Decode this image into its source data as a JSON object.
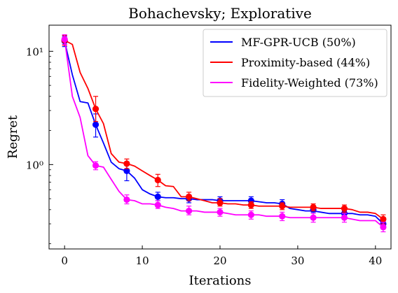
{
  "chart_data": {
    "type": "line",
    "title": "Bohachevsky; Explorative",
    "xlabel": "Iterations",
    "ylabel": "Regret",
    "xlim": [
      -2,
      42
    ],
    "ylim": [
      0.18,
      17
    ],
    "yscale": "log",
    "x_ticks": [
      0,
      10,
      20,
      30,
      40
    ],
    "x_tick_labels": [
      "0",
      "10",
      "20",
      "30",
      "40"
    ],
    "y_ticks": [
      1,
      10
    ],
    "y_tick_labels": [
      "10⁰",
      "10¹"
    ],
    "grid": false,
    "legend_position": "top-right",
    "series": [
      {
        "name": "MF-GPR-UCB (50%)",
        "color": "#0000ff",
        "x": [
          0,
          1,
          2,
          3,
          4,
          5,
          6,
          7,
          8,
          9,
          10,
          11,
          12,
          13,
          14,
          15,
          16,
          17,
          18,
          19,
          20,
          21,
          22,
          23,
          24,
          25,
          26,
          27,
          28,
          29,
          30,
          31,
          32,
          33,
          34,
          35,
          36,
          37,
          38,
          39,
          40,
          41
        ],
        "y": [
          12.3,
          6.2,
          3.6,
          3.5,
          2.25,
          1.55,
          1.05,
          0.92,
          0.88,
          0.76,
          0.6,
          0.55,
          0.52,
          0.51,
          0.51,
          0.5,
          0.5,
          0.49,
          0.49,
          0.49,
          0.48,
          0.48,
          0.48,
          0.48,
          0.48,
          0.47,
          0.46,
          0.46,
          0.45,
          0.41,
          0.4,
          0.39,
          0.39,
          0.38,
          0.37,
          0.37,
          0.37,
          0.37,
          0.36,
          0.36,
          0.35,
          0.3
        ],
        "marker_x": [
          0,
          4,
          8,
          12,
          16,
          20,
          24,
          28,
          32,
          36,
          41
        ],
        "marker_y": [
          12.3,
          2.25,
          0.88,
          0.52,
          0.5,
          0.48,
          0.48,
          0.45,
          0.4,
          0.37,
          0.3
        ],
        "err_low": [
          11.0,
          1.75,
          0.72,
          0.48,
          0.46,
          0.45,
          0.45,
          0.42,
          0.38,
          0.35,
          0.285
        ],
        "err_high": [
          13.6,
          2.8,
          1.05,
          0.57,
          0.54,
          0.52,
          0.52,
          0.49,
          0.42,
          0.39,
          0.315
        ]
      },
      {
        "name": "Proximity-based (44%)",
        "color": "#ff0000",
        "x": [
          0,
          1,
          2,
          3,
          4,
          5,
          6,
          7,
          8,
          9,
          10,
          11,
          12,
          13,
          14,
          15,
          16,
          17,
          18,
          19,
          20,
          21,
          22,
          23,
          24,
          25,
          26,
          27,
          28,
          29,
          30,
          31,
          32,
          33,
          34,
          35,
          36,
          37,
          38,
          39,
          40,
          41
        ],
        "y": [
          12.5,
          11.5,
          6.5,
          4.7,
          3.1,
          2.3,
          1.25,
          1.05,
          1.02,
          0.97,
          0.88,
          0.8,
          0.73,
          0.65,
          0.64,
          0.52,
          0.52,
          0.5,
          0.48,
          0.46,
          0.46,
          0.45,
          0.45,
          0.44,
          0.44,
          0.43,
          0.43,
          0.43,
          0.43,
          0.42,
          0.42,
          0.42,
          0.42,
          0.41,
          0.41,
          0.41,
          0.41,
          0.4,
          0.38,
          0.38,
          0.37,
          0.33
        ],
        "marker_x": [
          0,
          4,
          8,
          12,
          16,
          20,
          24,
          28,
          32,
          36,
          41
        ],
        "marker_y": [
          12.5,
          3.1,
          1.02,
          0.73,
          0.52,
          0.46,
          0.44,
          0.43,
          0.42,
          0.41,
          0.33
        ],
        "err_low": [
          11.3,
          2.4,
          0.92,
          0.64,
          0.48,
          0.43,
          0.41,
          0.4,
          0.39,
          0.38,
          0.3
        ],
        "err_high": [
          13.8,
          4.0,
          1.12,
          0.82,
          0.57,
          0.5,
          0.47,
          0.46,
          0.45,
          0.44,
          0.36
        ]
      },
      {
        "name": "Fidelity-Weighted (73%)",
        "color": "#ff00ff",
        "x": [
          0,
          1,
          2,
          3,
          4,
          5,
          6,
          7,
          8,
          9,
          10,
          11,
          12,
          13,
          14,
          15,
          16,
          17,
          18,
          19,
          20,
          21,
          22,
          23,
          24,
          25,
          26,
          27,
          28,
          29,
          30,
          31,
          32,
          33,
          34,
          35,
          36,
          37,
          38,
          39,
          40,
          41
        ],
        "y": [
          12.8,
          4.0,
          2.6,
          1.2,
          0.98,
          0.95,
          0.74,
          0.58,
          0.49,
          0.48,
          0.45,
          0.45,
          0.44,
          0.42,
          0.41,
          0.39,
          0.39,
          0.39,
          0.38,
          0.38,
          0.38,
          0.37,
          0.36,
          0.36,
          0.36,
          0.36,
          0.35,
          0.35,
          0.35,
          0.34,
          0.34,
          0.34,
          0.34,
          0.34,
          0.34,
          0.34,
          0.34,
          0.33,
          0.32,
          0.32,
          0.32,
          0.28
        ],
        "marker_x": [
          0,
          4,
          8,
          12,
          16,
          20,
          24,
          28,
          32,
          36,
          41
        ],
        "marker_y": [
          12.8,
          0.98,
          0.49,
          0.44,
          0.39,
          0.38,
          0.36,
          0.35,
          0.34,
          0.34,
          0.28
        ],
        "err_low": [
          11.5,
          0.9,
          0.45,
          0.41,
          0.36,
          0.35,
          0.33,
          0.32,
          0.31,
          0.31,
          0.255
        ],
        "err_high": [
          14.0,
          1.06,
          0.54,
          0.48,
          0.43,
          0.41,
          0.39,
          0.38,
          0.37,
          0.37,
          0.31
        ]
      }
    ]
  }
}
